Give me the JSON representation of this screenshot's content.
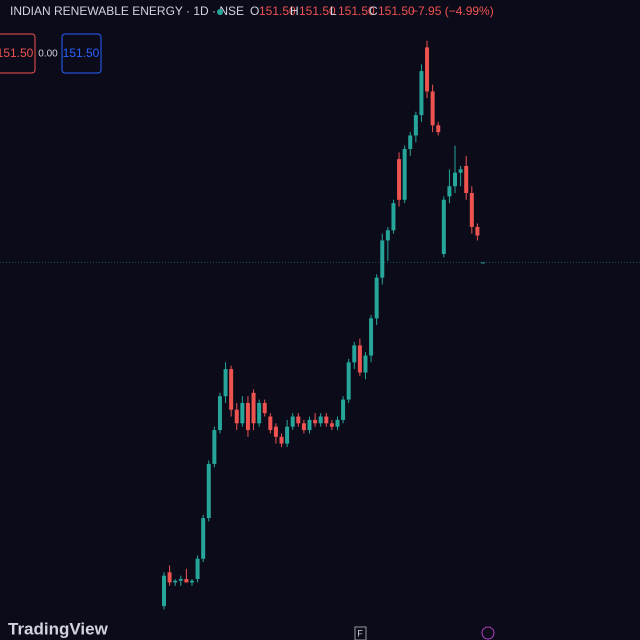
{
  "header": {
    "symbol": "INDIAN RENEWABLE ENERGY · 1D · NSE",
    "o_label": "O",
    "o": "151.50",
    "h_label": "H",
    "h": "151.50",
    "l_label": "L",
    "l": "151.50",
    "c_label": "C",
    "c": "151.50",
    "change": "−7.95 (−4.99%)"
  },
  "buttons": {
    "sell": "151.50",
    "spread": "0.00",
    "buy": "151.50"
  },
  "footer": {
    "brand": "TradingView",
    "f": "F"
  },
  "chart_data": {
    "type": "candlestick",
    "up_color": "#26a69a",
    "down_color": "#ef5350",
    "ylim": [
      40,
      229
    ],
    "categories": [
      null,
      null,
      null,
      null,
      null,
      null,
      null,
      null,
      null,
      null,
      null,
      null,
      null,
      null,
      null,
      null,
      null,
      null,
      null,
      null,
      null,
      null,
      null,
      null,
      null,
      null,
      null,
      null,
      null,
      null,
      null,
      null,
      null,
      null,
      null,
      null,
      null,
      null,
      null,
      null,
      null,
      null,
      null,
      null,
      null,
      null,
      null,
      null,
      null,
      null,
      null,
      null,
      null,
      null,
      null,
      null,
      null,
      null
    ],
    "open": [
      50,
      60,
      57,
      57.5,
      58,
      57,
      58,
      64,
      76,
      92,
      102,
      112,
      120,
      108,
      104,
      110,
      113,
      104,
      110,
      106,
      103,
      100,
      98,
      103,
      106,
      104,
      102,
      105,
      104,
      106,
      104,
      103,
      105,
      111,
      122,
      127,
      119,
      124,
      135,
      147,
      158,
      161,
      182,
      170,
      185,
      189,
      195,
      215,
      202,
      192,
      154,
      171,
      174,
      178,
      180,
      172,
      162,
      151.5
    ],
    "high": [
      60,
      62,
      58,
      59,
      61,
      58,
      65,
      77,
      93,
      103,
      113,
      122,
      121,
      110,
      112,
      112,
      114,
      111,
      111,
      107,
      104,
      101,
      105,
      107,
      107,
      105,
      106,
      107,
      107,
      107,
      105,
      106,
      112,
      123,
      128,
      129,
      125,
      136,
      148,
      160,
      162,
      170,
      184,
      186,
      190,
      196,
      210,
      217,
      204,
      193,
      171,
      179,
      186,
      180,
      183,
      174,
      163,
      151.5
    ],
    "low": [
      49,
      56,
      56,
      56,
      57,
      56,
      57,
      63,
      75,
      91,
      101,
      110,
      106,
      102,
      103,
      100,
      102,
      103,
      106,
      101,
      98,
      97,
      97,
      102,
      103,
      101,
      101,
      103,
      103,
      103,
      102,
      102,
      104,
      110,
      120,
      118,
      117,
      122,
      133,
      145,
      152,
      160,
      168,
      169,
      183,
      187,
      193,
      200,
      190,
      189,
      153,
      169,
      172,
      174,
      170,
      160,
      158,
      151.5
    ],
    "close": [
      59,
      57,
      57.5,
      58,
      57,
      57.5,
      64,
      76,
      92,
      102,
      112,
      120,
      108,
      104,
      110,
      102,
      104,
      110,
      107,
      102,
      100,
      98,
      103,
      106,
      104,
      102,
      105,
      104,
      106,
      104,
      103,
      105,
      111,
      122,
      127,
      119,
      124,
      135,
      147,
      158,
      161,
      169,
      170,
      185,
      189,
      195,
      208,
      202,
      192,
      190,
      170,
      174,
      178,
      179,
      172,
      162,
      159.45,
      151.5
    ]
  }
}
